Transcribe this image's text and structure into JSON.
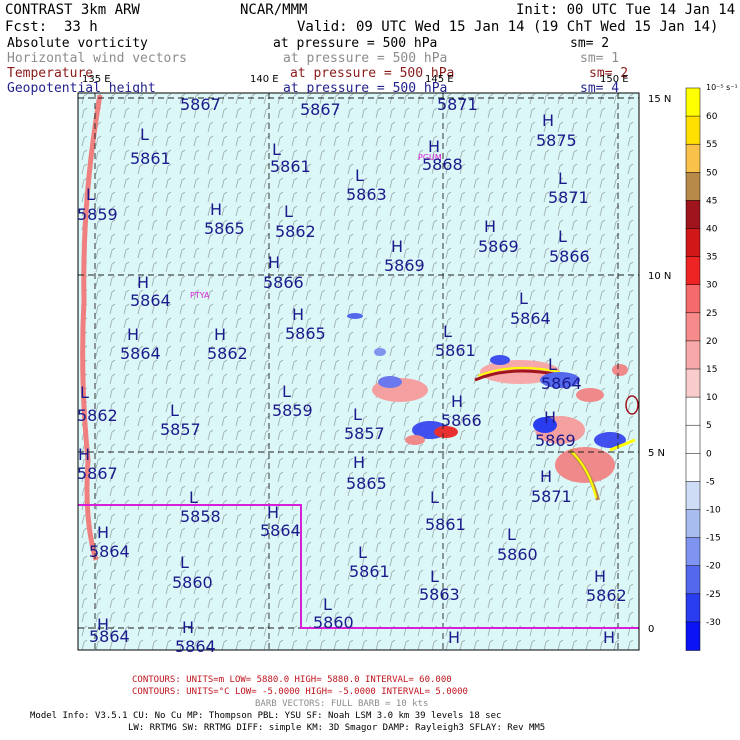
{
  "header": {
    "model": "CONTRAST  3km ARW",
    "center": "NCAR/MMM",
    "init": "Init: 00 UTC Tue 14 Jan 14",
    "fcst_label": "Fcst:",
    "fcst_value": "33 h",
    "valid": "Valid: 09 UTC Wed 15 Jan 14 (19 ChT Wed 15 Jan 14)"
  },
  "fields": [
    {
      "name": "Absolute vorticity",
      "level": "at pressure =  500 hPa",
      "sm": "sm= 2",
      "color": "#000000"
    },
    {
      "name": "Horizontal wind vectors",
      "level": "at pressure =  500 hPa",
      "sm": "sm= 1",
      "color": "#8c8c8c"
    },
    {
      "name": "Temperature",
      "level": "at pressure =  500 hPa",
      "sm": "sm= 2",
      "color": "#8b1a1a"
    },
    {
      "name": "Geopotential height",
      "level": "at pressure =  500 hPa",
      "sm": "sm= 4",
      "color": "#23238e"
    }
  ],
  "map": {
    "background": "#dcf7f7",
    "lon_labels": [
      "135 E",
      "140 E",
      "145 E",
      "150 E"
    ],
    "lat_labels": [
      "15 N",
      "10 N",
      "5 N",
      "0"
    ],
    "station_labels": [
      "PGUM",
      "PTYA"
    ],
    "highs": [
      "H",
      "H",
      "H",
      "H",
      "H",
      "H",
      "H",
      "H",
      "H",
      "H",
      "H",
      "H",
      "H",
      "H",
      "H",
      "H",
      "H",
      "H",
      "H",
      "H"
    ],
    "lows": [
      "L",
      "L",
      "L",
      "L",
      "L",
      "L",
      "L",
      "L",
      "L",
      "L",
      "L",
      "L",
      "L",
      "L",
      "L",
      "L",
      "L",
      "L",
      "L",
      "L"
    ],
    "height_values": [
      "5867",
      "5867",
      "5871",
      "5861",
      "5861",
      "5868",
      "5875",
      "5863",
      "5871",
      "5859",
      "5865",
      "5862",
      "5869",
      "5866",
      "5869",
      "5864",
      "5866",
      "5865",
      "5864",
      "5861",
      "5864",
      "5862",
      "5864",
      "5859",
      "5862",
      "5857",
      "5857",
      "5866",
      "5869",
      "5867",
      "5865",
      "5871",
      "5858",
      "5864",
      "5861",
      "5860",
      "5864",
      "5860",
      "5861",
      "5863",
      "5862",
      "5864",
      "5860",
      "5864"
    ],
    "colors": {
      "outline": "#d81ed8",
      "grid": "#222222"
    }
  },
  "colorbar": {
    "units": "10⁻⁵ s⁻¹",
    "labels": [
      "60",
      "55",
      "50",
      "45",
      "40",
      "35",
      "30",
      "25",
      "20",
      "15",
      "10",
      "5",
      "0",
      "-5",
      "-10",
      "-15",
      "-20",
      "-25",
      "-30"
    ],
    "colors": [
      "#ffff00",
      "#ffe000",
      "#f7c14a",
      "#b88a4a",
      "#a0141e",
      "#d01818",
      "#ee2424",
      "#f56a6a",
      "#f78a8a",
      "#f7a8a8",
      "#f9cccc",
      "#ffffff",
      "#ffffff",
      "#ffffff",
      "#cfdcf5",
      "#a8bcf0",
      "#7f94f0",
      "#5468ee",
      "#2a3cf0",
      "#0a14f5"
    ]
  },
  "footer": {
    "line1": "CONTOURS:  UNITS=m   LOW=  5880.0          HIGH=  5880.0         INTERVAL=   60.000",
    "line2": "CONTOURS:  UNITS=°C   LOW= -5.0000         HIGH= -5.0000         INTERVAL=   5.0000",
    "line3": "BARB VECTORS:  FULL BARB = 10 kts",
    "line4": "Model Info: V3.5.1     CU: No Cu      MP: Thompson      PBL: YSU        SF: Noah LSM       3.0 km   39 levels    18 sec",
    "line5": "LW: RRTMG     SW: RRTMG   DIFF: simple KM: 3D Smagor DAMP: Rayleigh3   SFLAY: Rev MM5"
  }
}
